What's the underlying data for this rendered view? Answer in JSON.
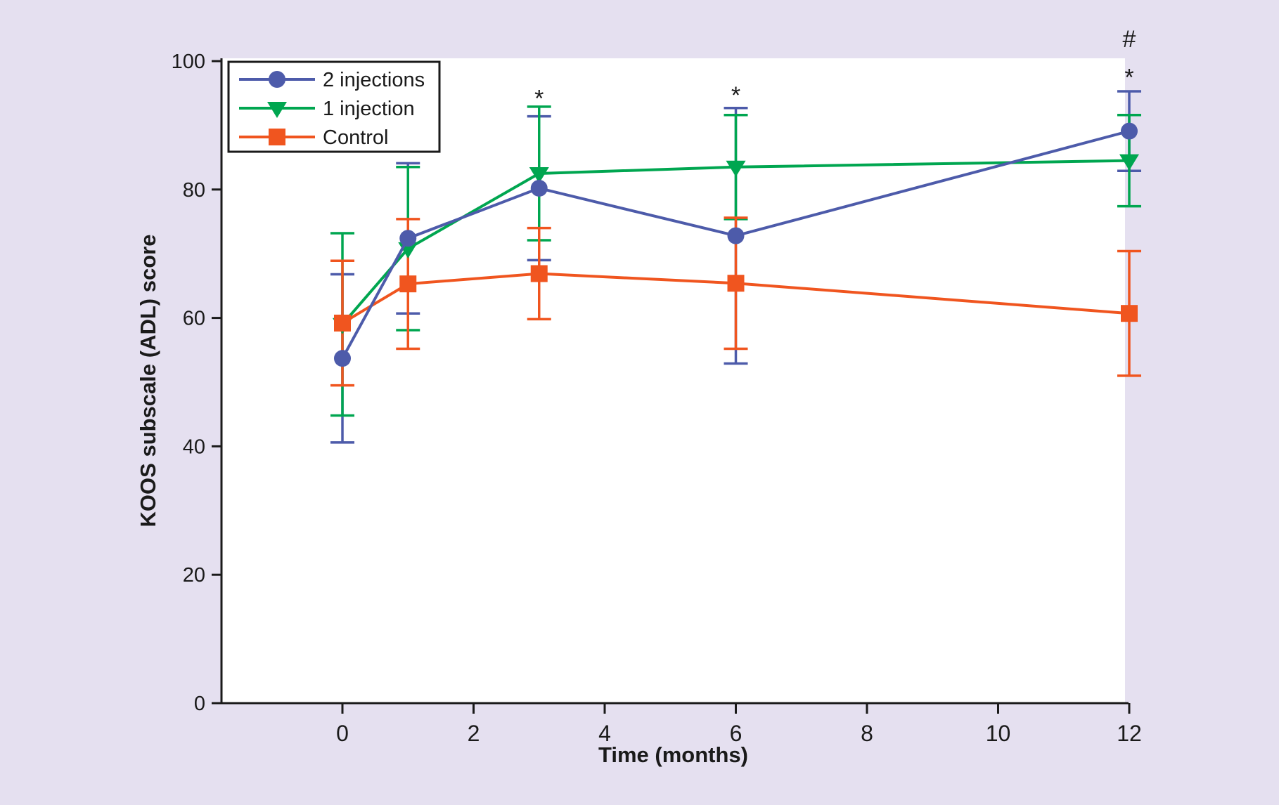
{
  "figure": {
    "background_color": "#e5e0f0",
    "plot_background_color": "#ffffff",
    "axis_color": "#1a1a1a"
  },
  "chart_data": {
    "type": "line",
    "title": "",
    "xlabel": "Time (months)",
    "ylabel": "KOOS subscale (ADL) score",
    "x": [
      0,
      1,
      3,
      6,
      12
    ],
    "x_ticks": [
      0,
      2,
      4,
      6,
      8,
      10,
      12
    ],
    "y_ticks": [
      0,
      20,
      40,
      60,
      80,
      100
    ],
    "xlim": [
      -1.85,
      12
    ],
    "ylim": [
      0,
      100
    ],
    "grid": false,
    "legend_position": "top-left",
    "error_bars": true,
    "series": [
      {
        "name": "2 injections",
        "color": "#4d5baa",
        "marker": "circle",
        "values": [
          53.7,
          72.4,
          80.2,
          72.8,
          89.1
        ],
        "errors": [
          13.1,
          11.7,
          11.2,
          19.9,
          6.2
        ]
      },
      {
        "name": "1 injection",
        "color": "#00a650",
        "marker": "triangle-down",
        "values": [
          59.0,
          70.8,
          82.5,
          83.5,
          84.5
        ],
        "errors": [
          14.2,
          12.7,
          10.4,
          8.1,
          7.1
        ]
      },
      {
        "name": "Control",
        "color": "#f0551f",
        "marker": "square",
        "values": [
          59.2,
          65.3,
          66.9,
          65.4,
          60.7
        ],
        "errors": [
          9.7,
          10.1,
          7.1,
          10.2,
          9.7
        ]
      }
    ],
    "annotations": [
      {
        "symbol": "*",
        "month": 3,
        "value": 95.0
      },
      {
        "symbol": "*",
        "month": 6,
        "value": 95.5
      },
      {
        "symbol": "*",
        "month": 12,
        "value": 98.3
      },
      {
        "symbol": "#",
        "month": 12,
        "value": 103.6
      }
    ]
  }
}
